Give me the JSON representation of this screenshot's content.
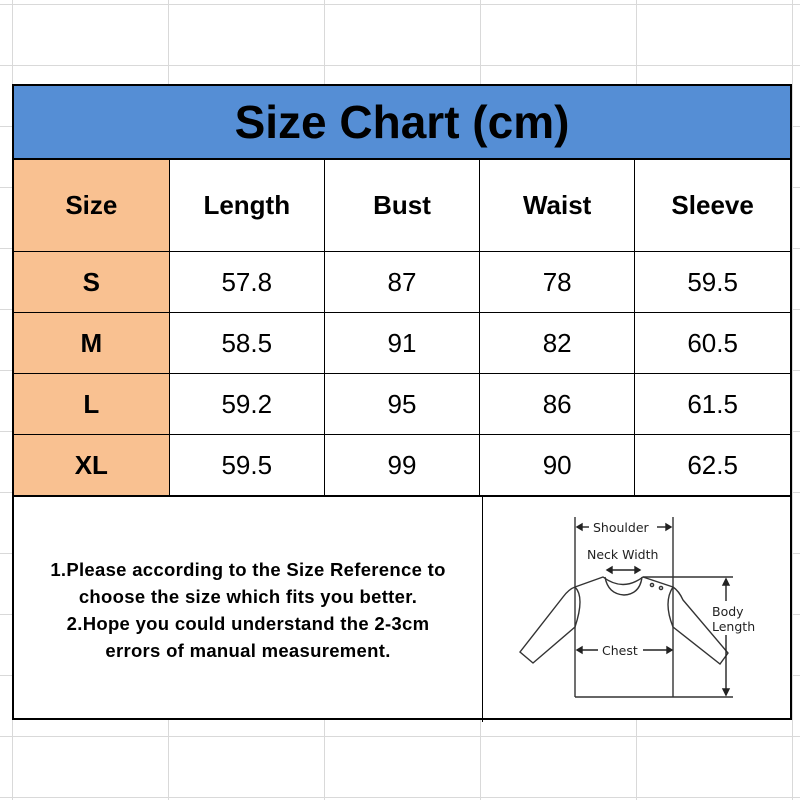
{
  "title": "Size Chart (cm)",
  "colors": {
    "title_bg": "#558ed5",
    "size_col_bg": "#f9c191"
  },
  "columns": [
    "Size",
    "Length",
    "Bust",
    "Waist",
    "Sleeve"
  ],
  "rows": [
    [
      "S",
      "57.8",
      "87",
      "78",
      "59.5"
    ],
    [
      "M",
      "58.5",
      "91",
      "82",
      "60.5"
    ],
    [
      "L",
      "59.2",
      "95",
      "86",
      "61.5"
    ],
    [
      "XL",
      "59.5",
      "99",
      "90",
      "62.5"
    ]
  ],
  "notes": [
    "1.Please according to the Size Reference to",
    "choose the size which fits you better.",
    "2.Hope you could understand the 2-3cm",
    "errors of manual measurement."
  ],
  "diagram": {
    "shoulder": "Shoulder",
    "neck_width": "Neck Width",
    "body": "Body",
    "length": "Length",
    "chest": "Chest"
  }
}
